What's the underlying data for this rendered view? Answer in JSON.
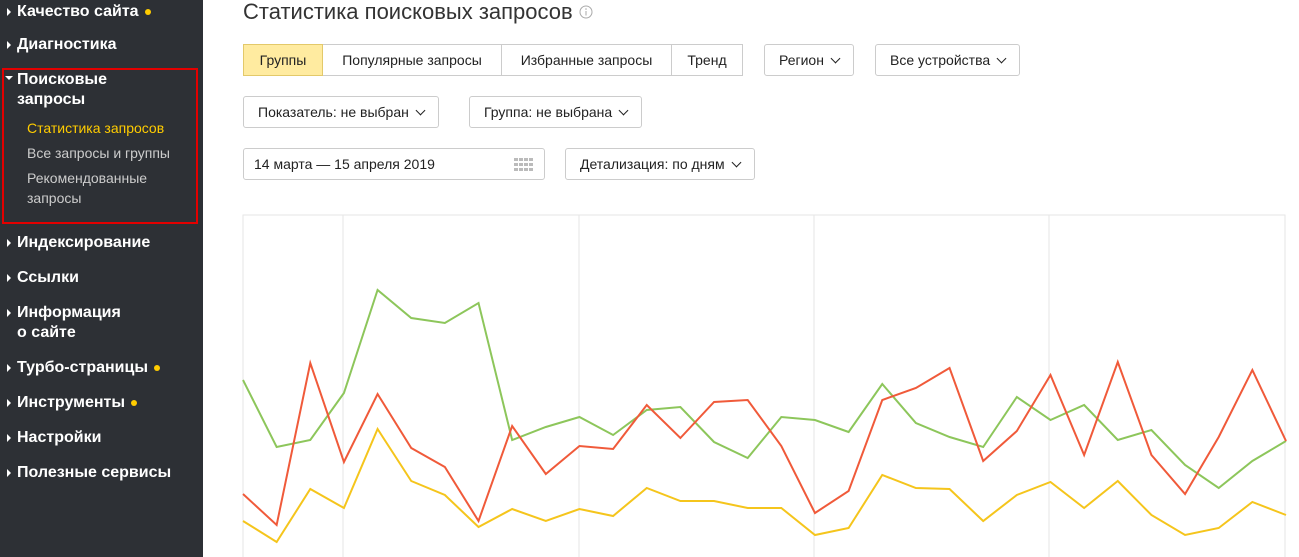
{
  "sidebar": {
    "items": [
      {
        "label": "Качество сайта",
        "dot": true
      },
      {
        "label": "Диагностика",
        "dot": false
      },
      {
        "label": "Поисковые\nзапросы",
        "dot": false,
        "open": true,
        "highlight": true,
        "subitems": [
          {
            "label": "Статистика запросов",
            "active": true
          },
          {
            "label": "Все запросы и группы",
            "active": false
          },
          {
            "label": "Рекомендованные\nзапросы",
            "active": false
          }
        ]
      },
      {
        "label": "Индексирование",
        "dot": false
      },
      {
        "label": "Ссылки",
        "dot": false
      },
      {
        "label": "Информация\nо сайте",
        "dot": false
      },
      {
        "label": "Турбо-страницы",
        "dot": true
      },
      {
        "label": "Инструменты",
        "dot": true
      },
      {
        "label": "Настройки",
        "dot": false
      },
      {
        "label": "Полезные сервисы",
        "dot": false
      }
    ]
  },
  "main": {
    "title": "Статистика поисковых запросов",
    "tabs": [
      {
        "label": "Группы",
        "active": true
      },
      {
        "label": "Популярные запросы",
        "active": false
      },
      {
        "label": "Избранные запросы",
        "active": false
      },
      {
        "label": "Тренд",
        "active": false
      }
    ],
    "region": "Регион",
    "devices": "Все устройства",
    "indicator": "Показатель: не выбран",
    "group": "Группа: не выбрана",
    "date_range": "14 марта — 15 апреля 2019",
    "detail": "Детализация: по дням"
  },
  "chart": {
    "type": "line",
    "ylim": [
      0,
      333
    ],
    "series": [
      {
        "color": "#8dc65b",
        "values": [
          168,
          101,
          108,
          155,
          258,
          230,
          225,
          245,
          108,
          121,
          131,
          113,
          138,
          141,
          106,
          90,
          131,
          128,
          116,
          164,
          125,
          111,
          101,
          151,
          128,
          143,
          108,
          118,
          83,
          60,
          87,
          107
        ]
      },
      {
        "color": "#f05a3a",
        "values": [
          54,
          23,
          185,
          86,
          154,
          100,
          81,
          27,
          122,
          74,
          102,
          99,
          143,
          110,
          146,
          148,
          102,
          35,
          57,
          148,
          160,
          180,
          87,
          117,
          173,
          93,
          186,
          93,
          54,
          111,
          178,
          107
        ]
      },
      {
        "color": "#f5c51c",
        "values": [
          27,
          6,
          59,
          40,
          119,
          67,
          53,
          21,
          39,
          27,
          39,
          32,
          60,
          47,
          47,
          40,
          40,
          13,
          20,
          73,
          60,
          59,
          27,
          53,
          66,
          40,
          67,
          33,
          13,
          20,
          46,
          33
        ]
      }
    ]
  }
}
